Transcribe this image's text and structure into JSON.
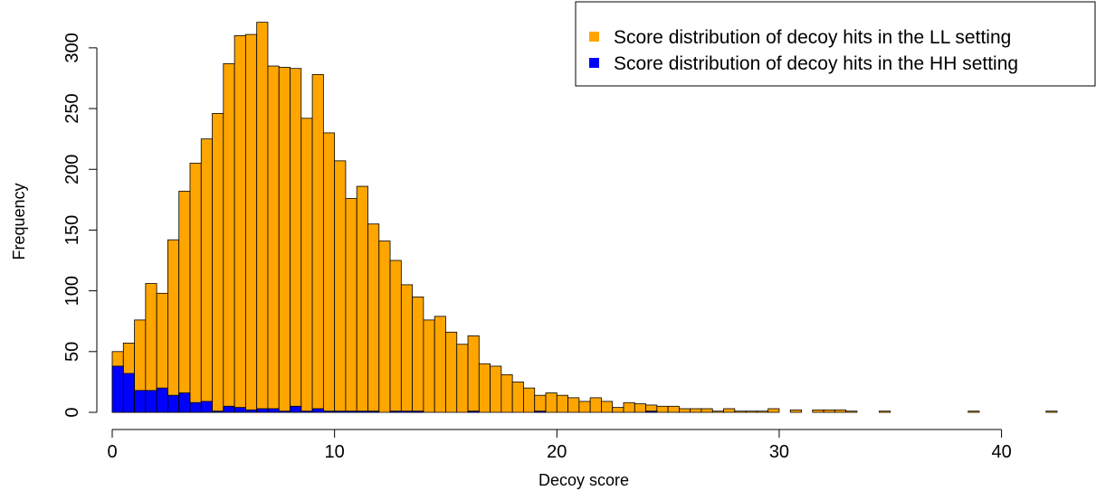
{
  "chart_data": {
    "type": "bar",
    "title": "",
    "xlabel": "Decoy score",
    "ylabel": "Frequency",
    "xlim": [
      0,
      42.5
    ],
    "ylim": [
      0,
      320
    ],
    "bin_width": 0.5,
    "x_ticks": [
      0,
      10,
      20,
      30,
      40
    ],
    "y_ticks": [
      0,
      50,
      100,
      150,
      200,
      250,
      300
    ],
    "grid": false,
    "legend_position": "top-right",
    "x": [
      0.25,
      0.75,
      1.25,
      1.75,
      2.25,
      2.75,
      3.25,
      3.75,
      4.25,
      4.75,
      5.25,
      5.75,
      6.25,
      6.75,
      7.25,
      7.75,
      8.25,
      8.75,
      9.25,
      9.75,
      10.25,
      10.75,
      11.25,
      11.75,
      12.25,
      12.75,
      13.25,
      13.75,
      14.25,
      14.75,
      15.25,
      15.75,
      16.25,
      16.75,
      17.25,
      17.75,
      18.25,
      18.75,
      19.25,
      19.75,
      20.25,
      20.75,
      21.25,
      21.75,
      22.25,
      22.75,
      23.25,
      23.75,
      24.25,
      24.75,
      25.25,
      25.75,
      26.25,
      26.75,
      27.25,
      27.75,
      28.25,
      28.75,
      29.25,
      29.75,
      30.25,
      30.75,
      31.25,
      31.75,
      32.25,
      32.75,
      33.25,
      33.75,
      34.25,
      34.75,
      35.25,
      35.75,
      36.25,
      36.75,
      37.25,
      37.75,
      38.25,
      38.75,
      39.25,
      39.75,
      40.25,
      40.75,
      41.25,
      41.75,
      42.25
    ],
    "series": [
      {
        "name": "Score distribution of decoy hits in the LL setting",
        "color": "#FFA500",
        "values": [
          50,
          57,
          76,
          106,
          98,
          142,
          182,
          205,
          225,
          246,
          287,
          310,
          311,
          321,
          285,
          284,
          283,
          242,
          278,
          230,
          207,
          176,
          186,
          155,
          141,
          125,
          105,
          95,
          76,
          79,
          66,
          56,
          63,
          40,
          38,
          31,
          25,
          20,
          14,
          16,
          14,
          12,
          9,
          12,
          9,
          4,
          8,
          7,
          6,
          5,
          5,
          3,
          3,
          3,
          1,
          3,
          1,
          1,
          1,
          3,
          0,
          2,
          0,
          2,
          2,
          2,
          1,
          0,
          0,
          1,
          0,
          0,
          0,
          0,
          0,
          0,
          0,
          1,
          0,
          0,
          0,
          0,
          0,
          0,
          1
        ]
      },
      {
        "name": "Score distribution of decoy hits in the HH setting",
        "color": "#0000FF",
        "values": [
          38,
          32,
          18,
          18,
          20,
          14,
          16,
          8,
          9,
          1,
          5,
          4,
          2,
          3,
          3,
          1,
          5,
          1,
          3,
          1,
          1,
          1,
          1,
          1,
          0,
          1,
          1,
          1,
          0,
          0,
          0,
          0,
          1,
          0,
          0,
          0,
          0,
          0,
          1,
          0,
          0,
          0,
          0,
          0,
          0,
          0,
          0,
          0,
          1,
          0,
          0,
          0,
          0,
          0,
          0,
          0,
          0,
          0,
          0,
          0,
          0,
          0,
          0,
          0,
          0,
          0,
          0,
          0,
          0,
          0,
          0,
          0,
          0,
          0,
          0,
          0,
          0,
          0,
          0,
          0,
          0,
          0,
          0,
          0,
          0
        ]
      }
    ]
  }
}
